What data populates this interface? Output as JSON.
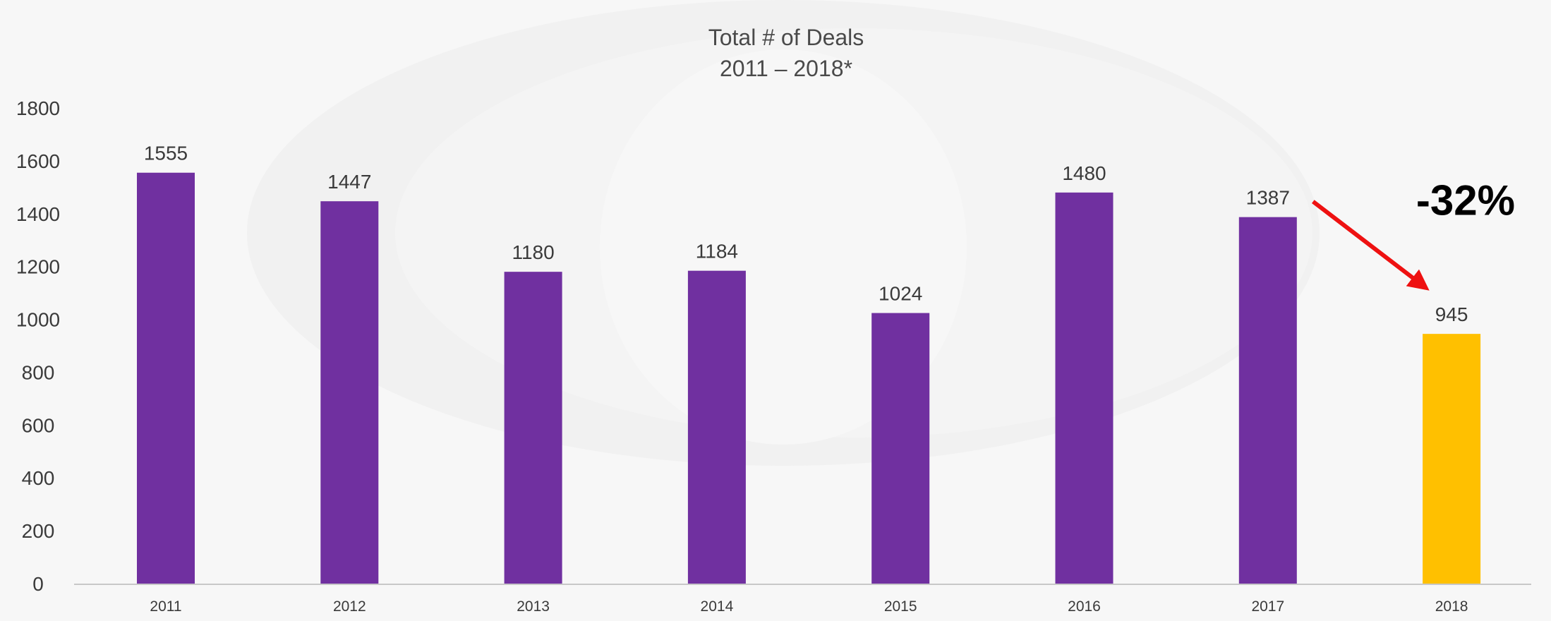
{
  "chart_data": {
    "type": "bar",
    "title": "Total # of Deals",
    "subtitle": "2011 – 2018*",
    "xlabel": "",
    "ylabel": "",
    "categories": [
      "2011",
      "2012",
      "2013",
      "2014",
      "2015",
      "2016",
      "2017",
      "2018"
    ],
    "values": [
      1555,
      1447,
      1180,
      1184,
      1024,
      1480,
      1387,
      945
    ],
    "data_labels": [
      "1555",
      "1447",
      "1180",
      "1184",
      "1024",
      "1480",
      "1387",
      "945"
    ],
    "ylim": [
      0,
      1800
    ],
    "yticks": [
      0,
      200,
      400,
      600,
      800,
      1000,
      1200,
      1400,
      1600,
      1800
    ],
    "ytick_labels": [
      "0",
      "200",
      "400",
      "600",
      "800",
      "1000",
      "1200",
      "1400",
      "1600",
      "1800"
    ],
    "grid": false,
    "legend": "none",
    "bar_color": "#7030a0",
    "highlight_color": "#ffc000",
    "highlight_index": 7,
    "annotation": {
      "text": "-32%",
      "color": "#000000",
      "arrow_color": "#ee1111",
      "from_category": "2017",
      "to_category": "2018"
    }
  }
}
